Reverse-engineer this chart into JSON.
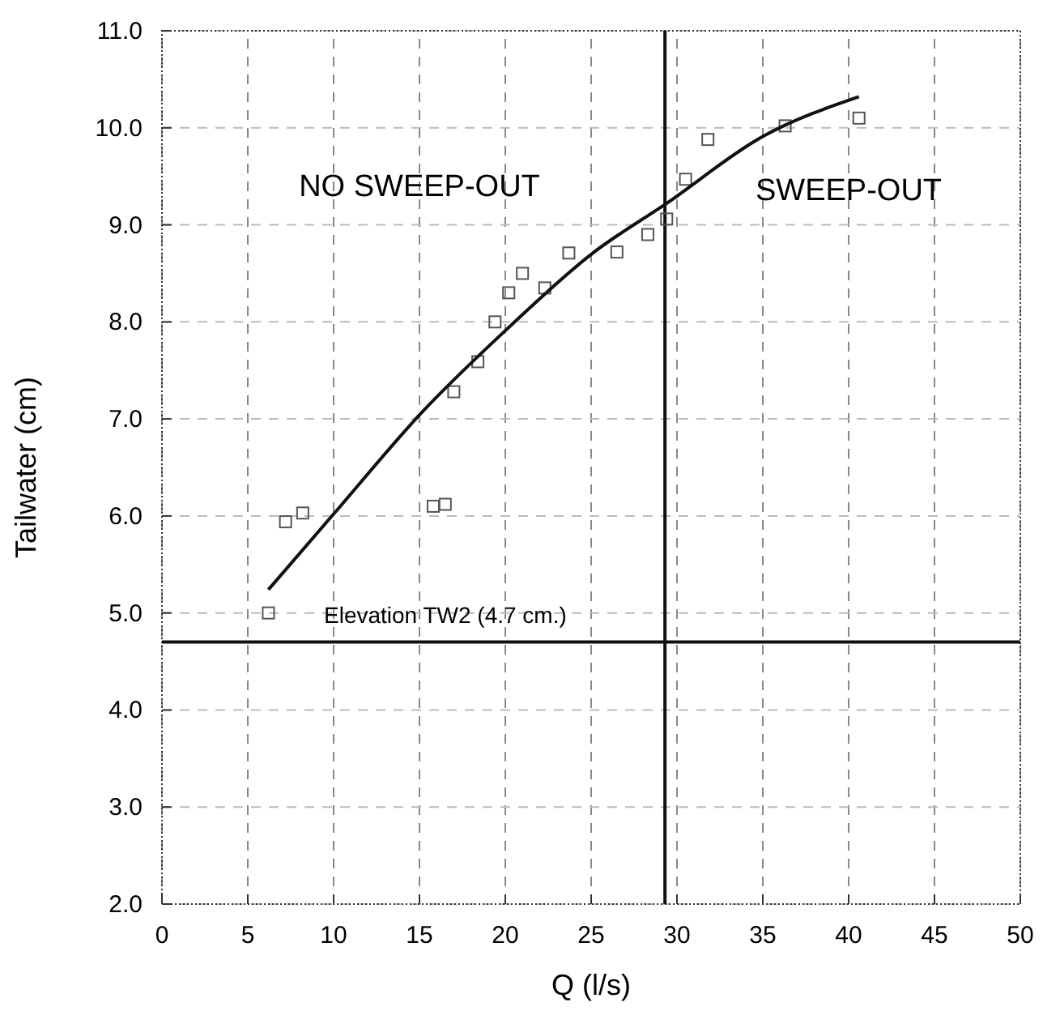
{
  "chart_data": {
    "type": "scatter",
    "xlabel": "Q (l/s)",
    "ylabel": "Tailwater (cm)",
    "xlim": [
      0,
      50
    ],
    "ylim": [
      2,
      11
    ],
    "xticks": [
      0,
      5,
      10,
      15,
      20,
      25,
      30,
      35,
      40,
      45,
      50
    ],
    "yticks": [
      {
        "value": 2,
        "label": "2.0"
      },
      {
        "value": 3,
        "label": "3.0"
      },
      {
        "value": 4,
        "label": "4.0"
      },
      {
        "value": 5,
        "label": "5.0"
      },
      {
        "value": 6,
        "label": "6.0"
      },
      {
        "value": 7,
        "label": "7.0"
      },
      {
        "value": 8,
        "label": "8.0"
      },
      {
        "value": 9,
        "label": "9.0"
      },
      {
        "value": 10,
        "label": "10.0"
      },
      {
        "value": 11,
        "label": "11.0"
      }
    ],
    "grid": true,
    "series": [
      {
        "marker": "square",
        "color": "#555555",
        "x": [
          6.2,
          7.2,
          8.2,
          15.8,
          16.5,
          17.0,
          18.4,
          19.4,
          20.2,
          21.0,
          22.3,
          23.7,
          26.5,
          28.3,
          29.4,
          30.5,
          31.8,
          36.3,
          40.6
        ],
        "values": [
          5.0,
          5.94,
          6.03,
          6.1,
          6.12,
          7.28,
          7.59,
          8.0,
          8.3,
          8.5,
          8.35,
          8.71,
          8.72,
          8.9,
          9.06,
          9.47,
          9.88,
          10.02,
          10.1
        ]
      },
      {
        "type": "line",
        "marker": "none",
        "line_style": "solid",
        "color": "#111111",
        "x": [
          6.2,
          10,
          15.1,
          20,
          25.1,
          29.3,
          35.1,
          40.6
        ],
        "values": [
          5.24,
          6.02,
          7.06,
          7.91,
          8.71,
          9.21,
          9.92,
          10.32
        ]
      }
    ],
    "ref_lines": [
      {
        "axis": "y",
        "value": 4.7,
        "label": "Elevation TW2 (4.7 cm.)",
        "color": "#111111"
      },
      {
        "axis": "x",
        "value": 29.3,
        "color": "#111111"
      }
    ],
    "annotations": [
      "NO SWEEP-OUT",
      "SWEEP-OUT"
    ]
  }
}
